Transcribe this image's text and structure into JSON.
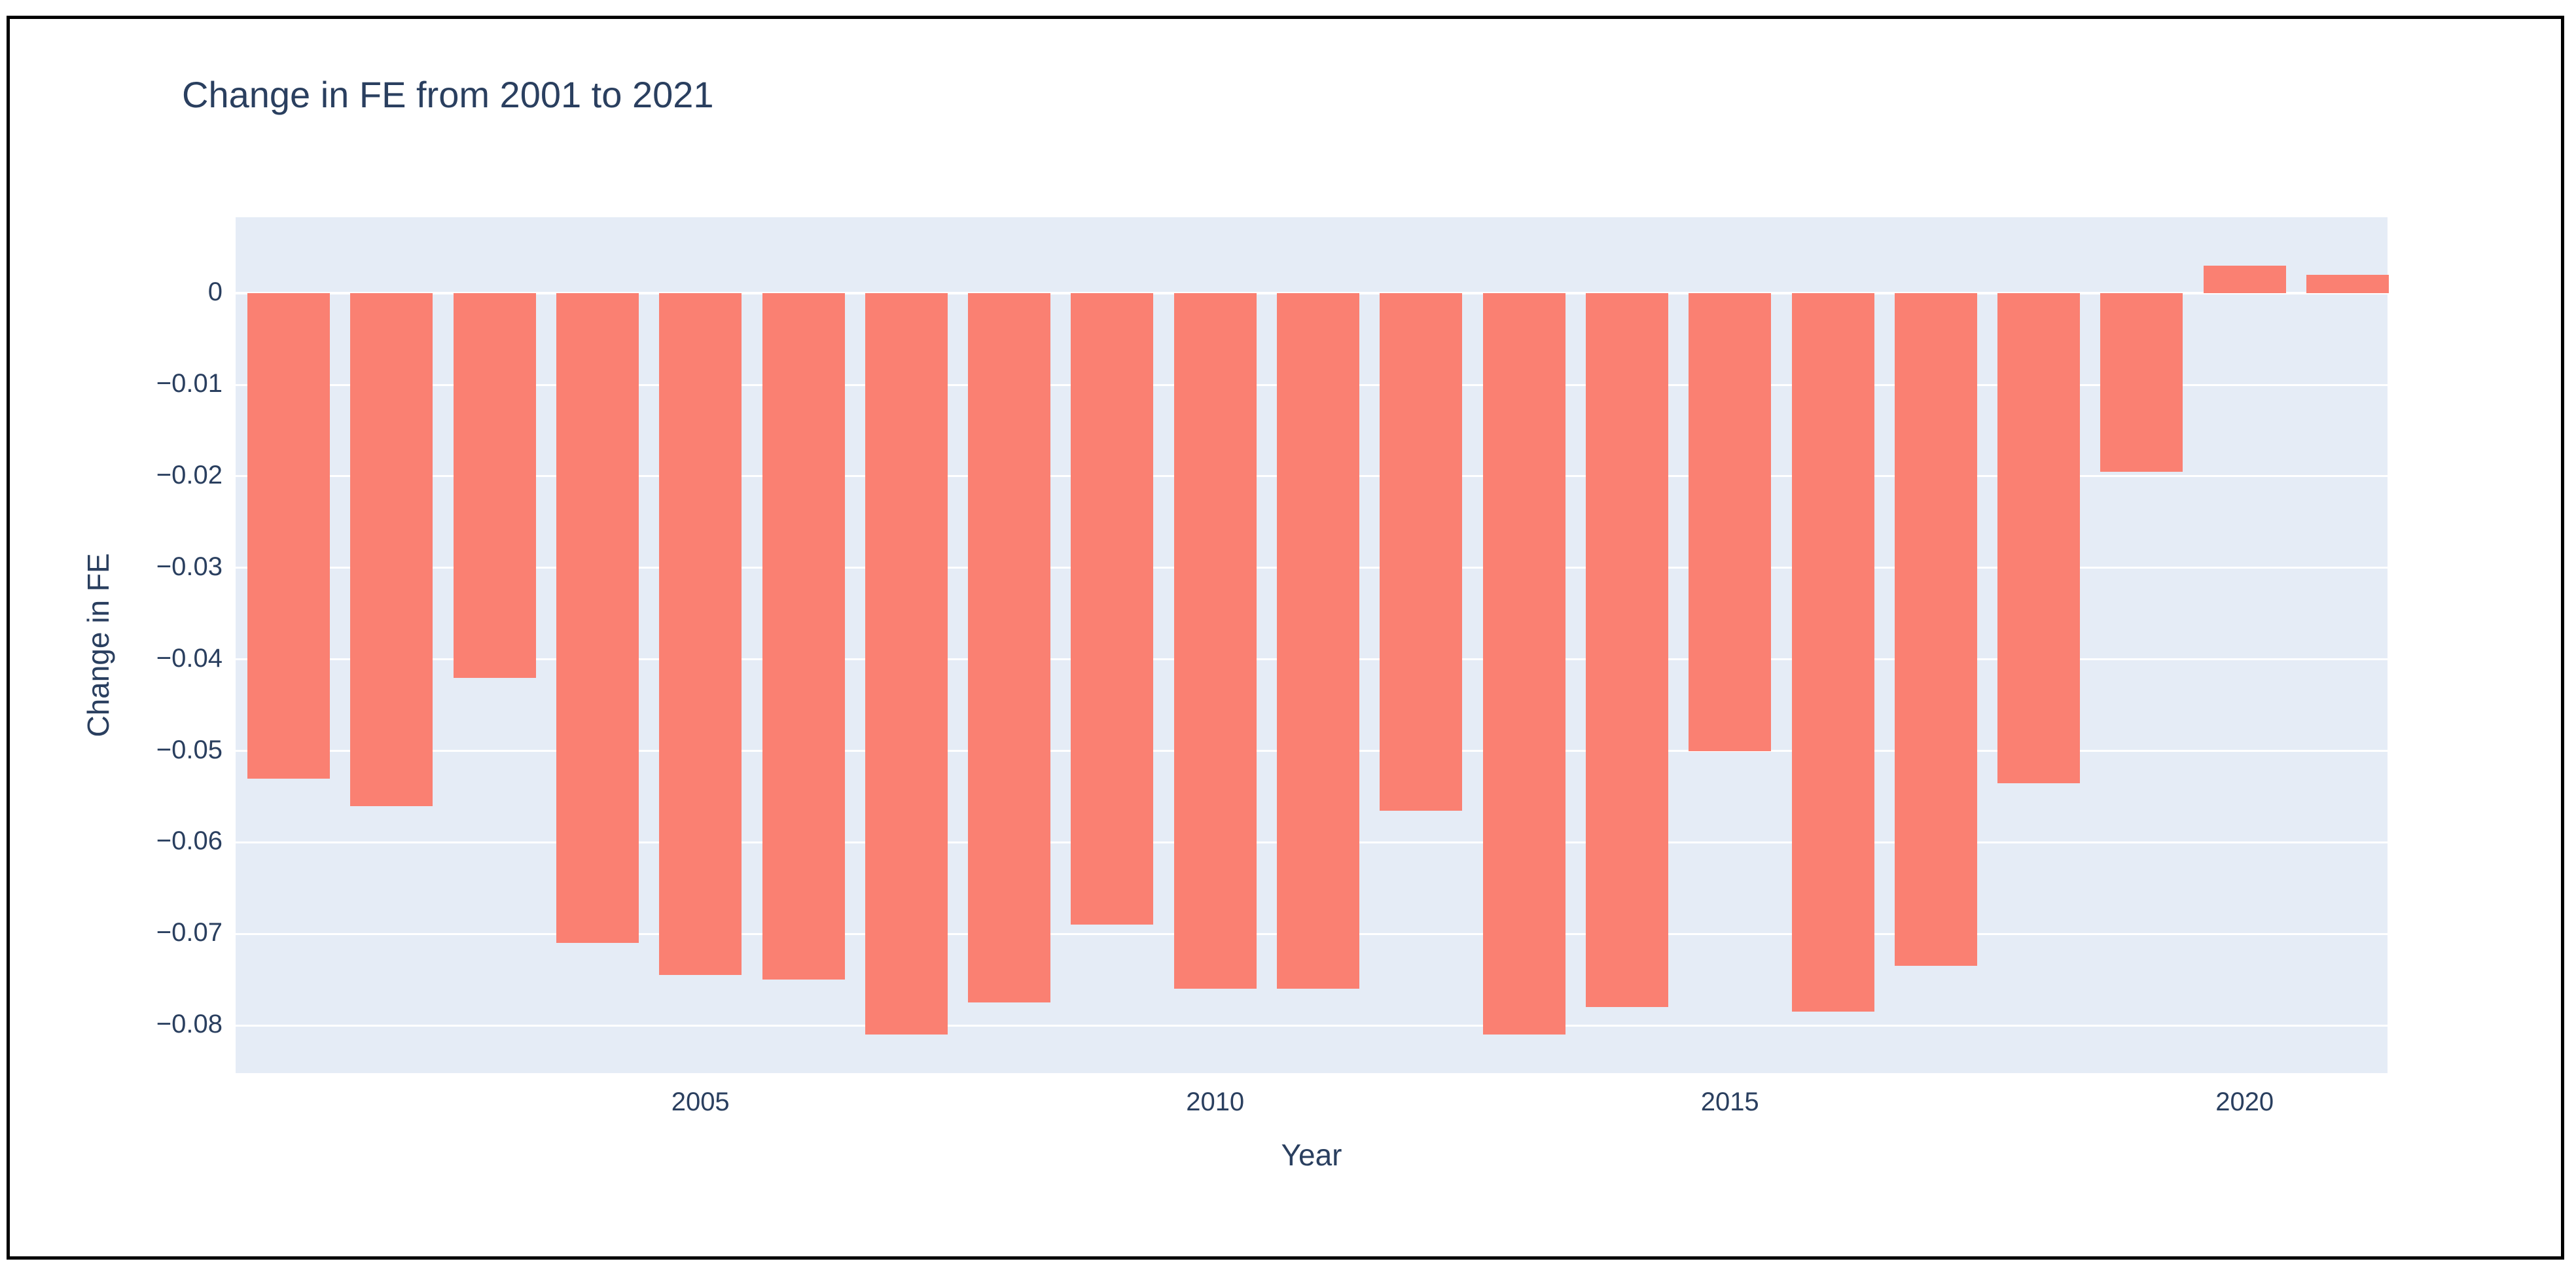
{
  "window": {
    "background": "#ffffff",
    "border_color": "#000000"
  },
  "chart_data": {
    "type": "bar",
    "title": "Change in FE from 2001 to 2021",
    "xlabel": "Year",
    "ylabel": "Change in FE",
    "categories": [
      2001,
      2002,
      2003,
      2004,
      2005,
      2006,
      2007,
      2008,
      2009,
      2010,
      2011,
      2012,
      2013,
      2014,
      2015,
      2016,
      2017,
      2018,
      2019,
      2020,
      2021
    ],
    "values": [
      -0.053,
      -0.056,
      -0.042,
      -0.071,
      -0.0745,
      -0.075,
      -0.081,
      -0.0775,
      -0.069,
      -0.076,
      -0.076,
      -0.0565,
      -0.081,
      -0.078,
      -0.05,
      -0.0785,
      -0.0735,
      -0.0535,
      -0.0195,
      0.003,
      0.002
    ],
    "yticks": [
      0,
      -0.01,
      -0.02,
      -0.03,
      -0.04,
      -0.05,
      -0.06,
      -0.07,
      -0.08
    ],
    "ytick_labels": [
      "0",
      "−0.01",
      "−0.02",
      "−0.03",
      "−0.04",
      "−0.05",
      "−0.06",
      "−0.07",
      "−0.08"
    ],
    "xticks": [
      2005,
      2010,
      2015,
      2020
    ],
    "xtick_labels": [
      "2005",
      "2010",
      "2015",
      "2020"
    ],
    "ylim": [
      -0.0852,
      0.0083
    ],
    "grid": true,
    "legend_position": "none",
    "bar_color": "#FA8072",
    "plot_bgcolor": "#E5ECF6",
    "gridline_color": "#ffffff",
    "text_color": "#2a3f5f"
  }
}
